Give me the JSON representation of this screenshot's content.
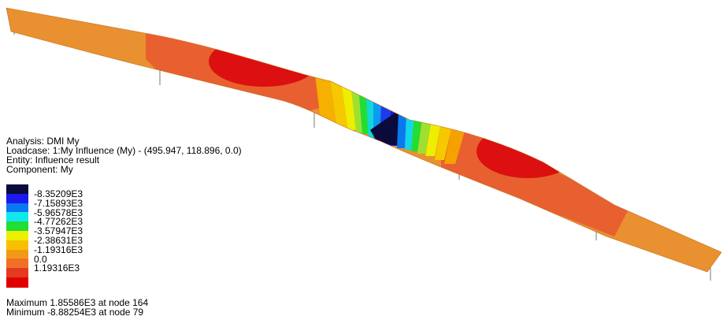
{
  "analysis": {
    "analysis_line": "Analysis: DMI My",
    "loadcase_line": "Loadcase: 1:My Influence (My) - (495.947, 118.896, 0.0)",
    "entity_line": "Entity: Influence result",
    "component_line": "Component: My"
  },
  "legend": {
    "colors": [
      "#0a0a3c",
      "#1a1aee",
      "#0a78f0",
      "#10e8ee",
      "#22dd33",
      "#eeee00",
      "#f8c000",
      "#f29a18",
      "#f07028",
      "#e43a20",
      "#e10000"
    ],
    "labels": [
      "-8.35209E3",
      "-7.15893E3",
      "-5.96578E3",
      "-4.77262E3",
      "-3.57947E3",
      "-2.38631E3",
      "-1.19316E3",
      "0.0",
      "1.19316E3"
    ]
  },
  "summary": {
    "maximum_line": "Maximum 1.85586E3 at node 164",
    "minimum_line": "Minimum -8.88254E3 at node 79"
  }
}
